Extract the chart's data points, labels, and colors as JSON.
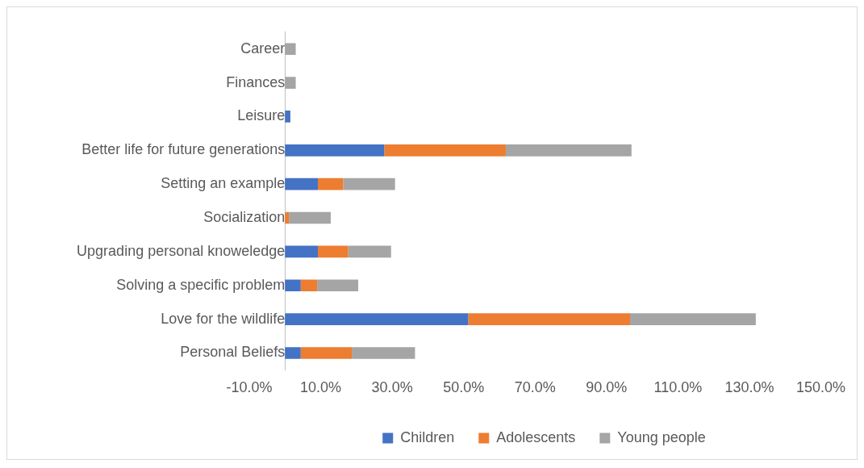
{
  "chart_data": {
    "type": "bar",
    "orientation": "horizontal",
    "stacked": true,
    "categories": [
      "Career",
      "Finances",
      "Leisure",
      "Better life for future generations",
      "Setting an example",
      "Socialization",
      "Upgrading personal knoweledge",
      "Solving a specific problem",
      "Love for the wildlife",
      "Personal Beliefs"
    ],
    "series": [
      {
        "name": "Children",
        "color": "#4472c4",
        "values": [
          0,
          0,
          1.5,
          27.8,
          9.2,
          0,
          9.2,
          4.4,
          51.3,
          4.4
        ]
      },
      {
        "name": "Adolescents",
        "color": "#ed7d31",
        "values": [
          0,
          0,
          0,
          34,
          7.1,
          1.1,
          8.5,
          4.6,
          45.3,
          14.3
        ]
      },
      {
        "name": "Young people",
        "color": "#a5a5a5",
        "values": [
          3,
          3,
          0,
          35.2,
          14.5,
          11.7,
          12,
          11.5,
          35.2,
          17.7
        ]
      }
    ],
    "xlim": [
      -10,
      150
    ],
    "xticks": [
      {
        "value": -10,
        "label": "-10.0%"
      },
      {
        "value": 10,
        "label": "10.0%"
      },
      {
        "value": 30,
        "label": "30.0%"
      },
      {
        "value": 50,
        "label": "50.0%"
      },
      {
        "value": 70,
        "label": "70.0%"
      },
      {
        "value": 90,
        "label": "90.0%"
      },
      {
        "value": 110,
        "label": "110.0%"
      },
      {
        "value": 130,
        "label": "130.0%"
      },
      {
        "value": 150,
        "label": "150.0%"
      }
    ],
    "grid": false,
    "legend": "bottom"
  }
}
